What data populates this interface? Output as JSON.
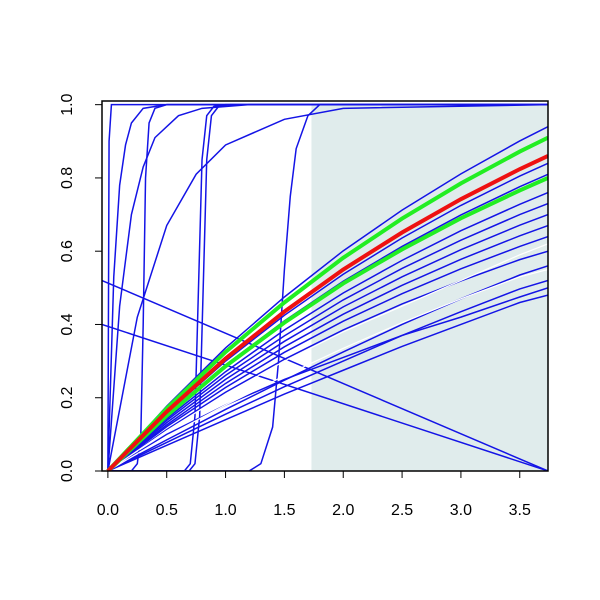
{
  "chart_data": {
    "type": "line",
    "xlim": [
      -0.05,
      3.74
    ],
    "ylim": [
      0,
      1.01
    ],
    "xticks": [
      {
        "value": 0,
        "label": "0.0"
      },
      {
        "value": 0.5,
        "label": "0.5"
      },
      {
        "value": 1,
        "label": "1.0"
      },
      {
        "value": 1.5,
        "label": "1.5"
      },
      {
        "value": 2,
        "label": "2.0"
      },
      {
        "value": 2.5,
        "label": "2.5"
      },
      {
        "value": 3,
        "label": "3.0"
      },
      {
        "value": 3.5,
        "label": "3.5"
      }
    ],
    "yticks": [
      {
        "value": 0,
        "label": "0.0"
      },
      {
        "value": 0.2,
        "label": "0.2"
      },
      {
        "value": 0.4,
        "label": "0.4"
      },
      {
        "value": 0.6,
        "label": "0.6"
      },
      {
        "value": 0.8,
        "label": "0.8"
      },
      {
        "value": 1,
        "label": "1.0"
      }
    ],
    "shaded_region": {
      "x": [
        1.73,
        3.74
      ],
      "y": [
        0,
        1
      ],
      "color": "#e0ecec"
    },
    "series": [
      {
        "color": "#1414e6",
        "width": 1.5,
        "x": [
          0,
          0.01,
          0.03,
          3.74
        ],
        "values": [
          0,
          0.9,
          1,
          1
        ]
      },
      {
        "color": "#1414e6",
        "width": 1.5,
        "x": [
          0,
          0.05,
          0.1,
          0.15,
          0.2,
          0.3,
          0.5,
          3.74
        ],
        "values": [
          0,
          0.53,
          0.78,
          0.89,
          0.95,
          0.99,
          1,
          1
        ]
      },
      {
        "color": "#1414e6",
        "width": 1.5,
        "x": [
          0,
          0.1,
          0.2,
          0.3,
          0.4,
          0.6,
          0.8,
          1.2,
          3.74
        ],
        "values": [
          0,
          0.45,
          0.7,
          0.83,
          0.91,
          0.97,
          0.99,
          1,
          1
        ]
      },
      {
        "color": "#1414e6",
        "width": 1.5,
        "x": [
          0,
          0.25,
          0.5,
          0.75,
          1,
          1.5,
          2,
          3.74
        ],
        "values": [
          0,
          0.42,
          0.67,
          0.81,
          0.89,
          0.96,
          0.99,
          1
        ]
      },
      {
        "color": "#1414e6",
        "width": 1.5,
        "x": [
          0,
          0.2,
          0.25,
          0.28,
          0.3,
          0.32,
          0.35,
          0.4,
          0.5,
          3.74
        ],
        "values": [
          0,
          0,
          0.02,
          0.1,
          0.4,
          0.8,
          0.95,
          0.99,
          1,
          1
        ]
      },
      {
        "color": "#1414e6",
        "width": 1.5,
        "x": [
          0,
          0.65,
          0.7,
          0.74,
          0.77,
          0.8,
          0.84,
          0.9,
          1,
          3.74
        ],
        "values": [
          0,
          0,
          0.02,
          0.15,
          0.5,
          0.85,
          0.97,
          0.995,
          1,
          1
        ]
      },
      {
        "color": "#1414e6",
        "width": 1.5,
        "x": [
          0,
          0.69,
          0.74,
          0.78,
          0.81,
          0.84,
          0.88,
          0.94,
          1.04,
          3.74
        ],
        "values": [
          0,
          0,
          0.02,
          0.15,
          0.5,
          0.85,
          0.97,
          0.995,
          1,
          1
        ]
      },
      {
        "color": "#1414e6",
        "width": 1.5,
        "x": [
          0,
          1.2,
          1.3,
          1.4,
          1.45,
          1.5,
          1.55,
          1.6,
          1.7,
          1.8,
          3.74
        ],
        "values": [
          0,
          0,
          0.02,
          0.12,
          0.3,
          0.55,
          0.75,
          0.88,
          0.97,
          1,
          1
        ]
      },
      {
        "color": "#1414e6",
        "width": 1.5,
        "x": [
          -0.05,
          3.74
        ],
        "values": [
          0.52,
          0
        ]
      },
      {
        "color": "#1414e6",
        "width": 1.5,
        "x": [
          -0.05,
          3.74
        ],
        "values": [
          0.4,
          0
        ]
      },
      {
        "color": "#1414e6",
        "width": 1.5,
        "x": [
          0,
          0.5,
          1,
          1.5,
          2,
          2.5,
          3,
          3.5,
          3.74
        ],
        "values": [
          0,
          0.177,
          0.336,
          0.475,
          0.601,
          0.712,
          0.811,
          0.901,
          0.94
        ]
      },
      {
        "color": "#1414e6",
        "width": 1.5,
        "x": [
          0,
          0.5,
          1,
          1.5,
          2,
          2.5,
          3,
          3.5,
          3.74
        ],
        "values": [
          0,
          0.158,
          0.3,
          0.425,
          0.537,
          0.636,
          0.725,
          0.805,
          0.84
        ]
      },
      {
        "color": "#1414e6",
        "width": 1.5,
        "x": [
          0,
          0.5,
          1,
          1.5,
          2,
          2.5,
          3,
          3.5,
          3.74
        ],
        "values": [
          0,
          0.153,
          0.289,
          0.41,
          0.518,
          0.613,
          0.699,
          0.776,
          0.81
        ]
      },
      {
        "color": "#1414e6",
        "width": 1.5,
        "x": [
          0,
          0.5,
          1,
          1.5,
          2,
          2.5,
          3,
          3.5,
          3.74
        ],
        "values": [
          0,
          0.143,
          0.271,
          0.385,
          0.486,
          0.575,
          0.656,
          0.728,
          0.76
        ]
      },
      {
        "color": "#1414e6",
        "width": 1.5,
        "x": [
          0,
          0.5,
          1,
          1.5,
          2,
          2.5,
          3,
          3.5,
          3.74
        ],
        "values": [
          0,
          0.138,
          0.261,
          0.369,
          0.467,
          0.553,
          0.63,
          0.7,
          0.73
        ]
      },
      {
        "color": "#1414e6",
        "width": 1.5,
        "x": [
          0,
          0.5,
          1,
          1.5,
          2,
          2.5,
          3,
          3.5,
          3.74
        ],
        "values": [
          0,
          0.132,
          0.25,
          0.354,
          0.448,
          0.53,
          0.604,
          0.671,
          0.7
        ]
      },
      {
        "color": "#1414e6",
        "width": 1.5,
        "x": [
          0,
          0.5,
          1,
          1.5,
          2,
          2.5,
          3,
          3.5,
          3.74
        ],
        "values": [
          0,
          0.126,
          0.239,
          0.339,
          0.428,
          0.507,
          0.578,
          0.642,
          0.67
        ]
      },
      {
        "color": "#1414e6",
        "width": 1.5,
        "x": [
          0,
          0.5,
          1,
          1.5,
          2,
          2.5,
          3,
          3.5,
          3.74
        ],
        "values": [
          0,
          0.121,
          0.228,
          0.324,
          0.409,
          0.484,
          0.552,
          0.613,
          0.64
        ]
      },
      {
        "color": "#1414e6",
        "width": 1.5,
        "x": [
          0,
          0.5,
          1,
          1.5,
          2,
          2.5,
          3,
          3.5,
          3.74
        ],
        "values": [
          0,
          0.113,
          0.215,
          0.305,
          0.385,
          0.456,
          0.519,
          0.577,
          0.6
        ]
      },
      {
        "color": "#1414e6",
        "width": 1.5,
        "x": [
          0,
          0.5,
          1,
          1.5,
          2,
          2.5,
          3,
          3.5,
          3.74
        ],
        "values": [
          0,
          0.085,
          0.168,
          0.248,
          0.325,
          0.4,
          0.47,
          0.535,
          0.56
        ]
      },
      {
        "color": "#1414e6",
        "width": 1.5,
        "x": [
          0,
          0.5,
          1,
          1.5,
          2,
          2.5,
          3,
          3.5,
          3.74
        ],
        "values": [
          0,
          0.078,
          0.155,
          0.23,
          0.3,
          0.37,
          0.435,
          0.497,
          0.52
        ]
      },
      {
        "color": "#1414e6",
        "width": 1.5,
        "x": [
          0,
          0.5,
          1,
          1.5,
          2,
          2.5,
          3,
          3.5,
          3.74
        ],
        "values": [
          0,
          0.07,
          0.14,
          0.21,
          0.275,
          0.34,
          0.4,
          0.46,
          0.48
        ]
      },
      {
        "color": "#1414e6",
        "width": 1.5,
        "x": [
          0,
          0.5,
          1,
          1.5,
          2,
          2.5,
          3,
          3.5,
          3.74
        ],
        "values": [
          0,
          0.1,
          0.18,
          0.25,
          0.31,
          0.37,
          0.42,
          0.475,
          0.5
        ]
      },
      {
        "color": "#ffffff",
        "width": 1.2,
        "x": [
          0,
          0.5,
          1,
          1.5,
          2,
          2.5,
          3,
          3.5,
          3.74
        ],
        "values": [
          0,
          0.11,
          0.21,
          0.3,
          0.38,
          0.45,
          0.52,
          0.59,
          0.62
        ]
      },
      {
        "color": "#ffffff",
        "width": 1.2,
        "x": [
          0,
          0.5,
          1,
          1.5,
          2,
          2.5,
          3,
          3.5,
          3.74
        ],
        "values": [
          0,
          0.095,
          0.18,
          0.26,
          0.335,
          0.405,
          0.47,
          0.53,
          0.55
        ]
      },
      {
        "color": "#22ee22",
        "width": 4,
        "x": [
          0,
          0.5,
          1,
          1.5,
          2,
          2.5,
          3,
          3.5,
          3.74
        ],
        "values": [
          0,
          0.171,
          0.325,
          0.46,
          0.582,
          0.689,
          0.785,
          0.872,
          0.91
        ]
      },
      {
        "color": "#22ee22",
        "width": 4,
        "x": [
          0,
          0.5,
          1,
          1.5,
          2,
          2.5,
          3,
          3.5,
          3.74
        ],
        "values": [
          0,
          0.151,
          0.286,
          0.405,
          0.512,
          0.605,
          0.69,
          0.766,
          0.8
        ]
      },
      {
        "color": "#ee1111",
        "width": 4,
        "x": [
          0,
          0.5,
          1,
          1.5,
          2,
          2.5,
          3,
          3.5,
          3.74
        ],
        "values": [
          0,
          0.162,
          0.307,
          0.435,
          0.55,
          0.651,
          0.742,
          0.824,
          0.86
        ]
      }
    ]
  }
}
